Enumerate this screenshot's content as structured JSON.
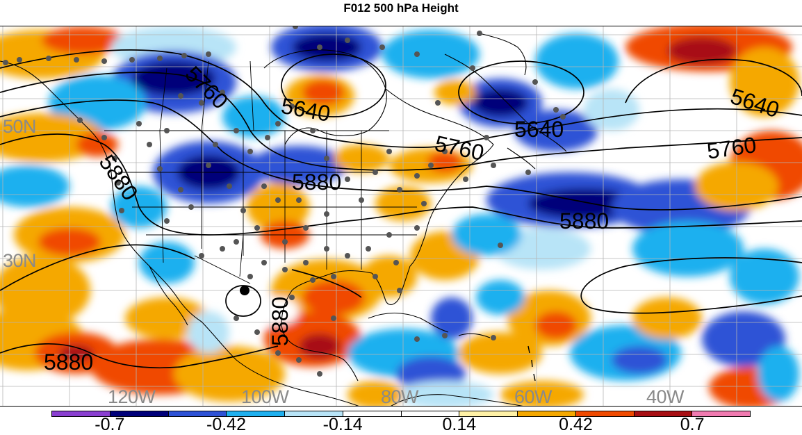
{
  "title": "F012 500 hPa Height",
  "latitude_labels": [
    "50N",
    "30N"
  ],
  "longitude_labels": [
    "120W",
    "100W",
    "80W",
    "60W",
    "40W"
  ],
  "contour_labels": [
    "5760",
    "5640",
    "5640",
    "5640",
    "5760",
    "5760",
    "5880",
    "5880",
    "5880",
    "5880",
    "5880"
  ],
  "colorbar": {
    "colors": [
      "#8a3fd1",
      "#00007a",
      "#2e52d6",
      "#1fb0ef",
      "#b8e4f7",
      "#ffffff",
      "#ffffff",
      "#fff1a6",
      "#f5a800",
      "#f04a00",
      "#a80f14",
      "#f07ab0"
    ],
    "tick_labels": [
      "-0.7",
      "-0.42",
      "-0.14",
      "0.14",
      "0.42",
      "0.7"
    ]
  },
  "icons": [
    "station-dot",
    "storm-marker"
  ]
}
